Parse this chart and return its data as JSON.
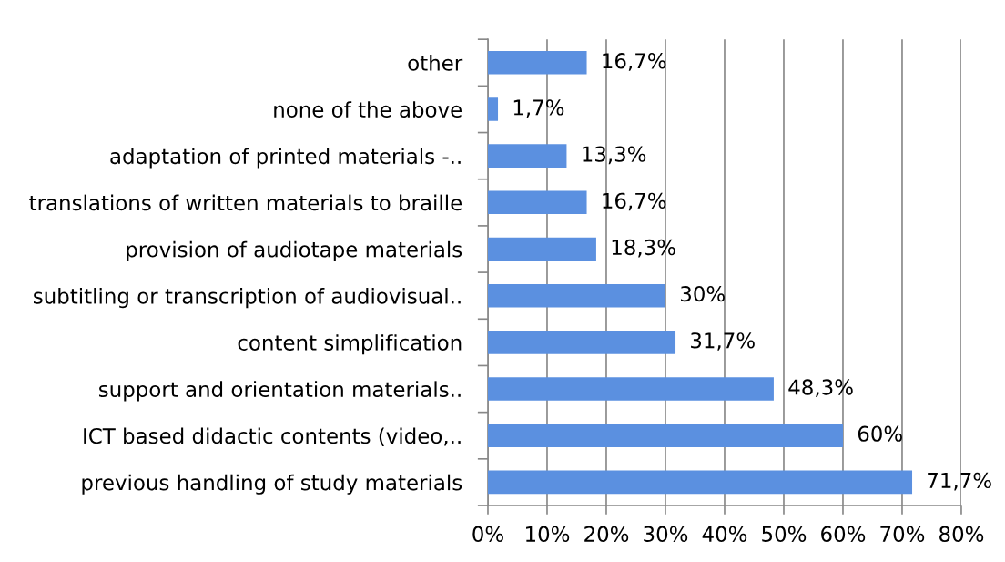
{
  "chart_data": {
    "type": "bar",
    "orientation": "horizontal",
    "categories": [
      "other",
      "none of the above",
      "adaptation of printed materials -..",
      "translations of written materials to braille",
      "provision of audiotape materials",
      "subtitling or transcription of audiovisual..",
      "content simplification",
      "support and orientation materials..",
      "ICT based didactic contents (video,..",
      "previous handling of study materials"
    ],
    "values": [
      16.7,
      1.7,
      13.3,
      16.7,
      18.3,
      30,
      31.7,
      48.3,
      60,
      71.7
    ],
    "value_labels": [
      "16,7%",
      "1,7%",
      "13,3%",
      "16,7%",
      "18,3%",
      "30%",
      "31,7%",
      "48,3%",
      "60%",
      "71,7%"
    ],
    "color": "#5b90e0",
    "xlim": [
      0,
      80
    ],
    "xticks": [
      {
        "value": 0,
        "label": "0%"
      },
      {
        "value": 10,
        "label": "10%"
      },
      {
        "value": 20,
        "label": "20%"
      },
      {
        "value": 30,
        "label": "30%"
      },
      {
        "value": 40,
        "label": "40%"
      },
      {
        "value": 50,
        "label": "50%"
      },
      {
        "value": 60,
        "label": "60%"
      },
      {
        "value": 70,
        "label": "70%"
      },
      {
        "value": 80,
        "label": "80%"
      }
    ],
    "grid": "x"
  }
}
